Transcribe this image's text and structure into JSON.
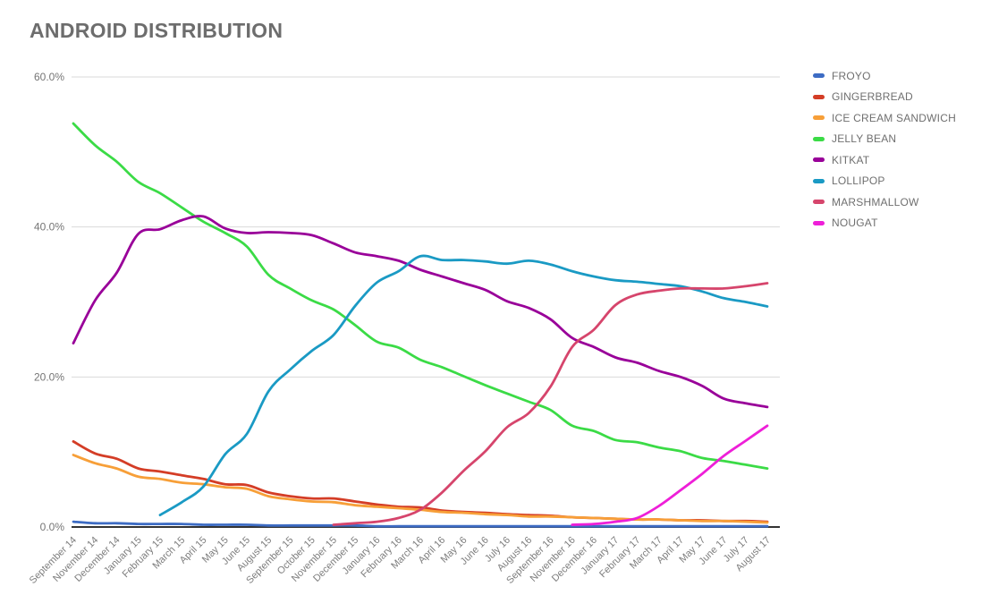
{
  "title": "ANDROID DISTRIBUTION",
  "chart_data": {
    "type": "line",
    "title": "ANDROID DISTRIBUTION",
    "grid": true,
    "legend_position": "right",
    "y_axis": {
      "min": 0,
      "max": 60,
      "ticks": [
        {
          "value": 0,
          "label": "0.0%"
        },
        {
          "value": 20,
          "label": "20.0%"
        },
        {
          "value": 40,
          "label": "40.0%"
        },
        {
          "value": 60,
          "label": "60.0%"
        }
      ]
    },
    "x_labels": [
      "September 14",
      "November 14",
      "December 14",
      "January 15",
      "February 15",
      "March 15",
      "April 15",
      "May 15",
      "June 15",
      "August 15",
      "September 15",
      "October 15",
      "November 15",
      "December 15",
      "January 16",
      "February 16",
      "March 16",
      "April 16",
      "May 16",
      "June 16",
      "July 16",
      "August 16",
      "September 16",
      "November 16",
      "December 16",
      "January 17",
      "February 17",
      "March 17",
      "April 17",
      "May 17",
      "June 17",
      "July 17",
      "August 17"
    ],
    "series": [
      {
        "name": "FROYO",
        "color": "#3d6cc4",
        "values": [
          0.7,
          0.5,
          0.5,
          0.4,
          0.4,
          0.4,
          0.3,
          0.3,
          0.3,
          0.2,
          0.2,
          0.2,
          0.2,
          0.2,
          0.1,
          0.1,
          0.1,
          0.1,
          0.1,
          0.1,
          0.1,
          0.1,
          0.1,
          0.1,
          0.1,
          0.1,
          0.1,
          0.1,
          0.1,
          0.1,
          0.1,
          0.1,
          0.1
        ]
      },
      {
        "name": "GINGERBREAD",
        "color": "#d43d26",
        "values": [
          11.4,
          9.8,
          9.1,
          7.8,
          7.4,
          6.9,
          6.4,
          5.7,
          5.6,
          4.6,
          4.1,
          3.8,
          3.8,
          3.4,
          3.0,
          2.7,
          2.6,
          2.2,
          2.0,
          1.9,
          1.7,
          1.6,
          1.5,
          1.3,
          1.2,
          1.1,
          1.0,
          1.0,
          0.9,
          0.9,
          0.8,
          0.8,
          0.7
        ]
      },
      {
        "name": "ICE CREAM SANDWICH",
        "color": "#f79f38",
        "values": [
          9.6,
          8.5,
          7.8,
          6.7,
          6.4,
          5.9,
          5.7,
          5.3,
          5.1,
          4.1,
          3.7,
          3.4,
          3.3,
          2.9,
          2.7,
          2.5,
          2.3,
          2.0,
          1.9,
          1.7,
          1.6,
          1.4,
          1.4,
          1.3,
          1.2,
          1.1,
          1.0,
          1.0,
          0.9,
          0.8,
          0.8,
          0.7,
          0.6
        ]
      },
      {
        "name": "JELLY BEAN",
        "color": "#3bdb46",
        "values": [
          53.8,
          50.9,
          48.7,
          46.0,
          44.5,
          42.6,
          40.7,
          39.2,
          37.4,
          33.6,
          31.8,
          30.2,
          29.0,
          26.9,
          24.7,
          23.9,
          22.3,
          21.3,
          20.1,
          18.9,
          17.8,
          16.7,
          15.6,
          13.5,
          12.8,
          11.6,
          11.3,
          10.6,
          10.1,
          9.2,
          8.8,
          8.3,
          7.8
        ]
      },
      {
        "name": "KITKAT",
        "color": "#990099",
        "values": [
          24.5,
          30.2,
          33.9,
          39.1,
          39.7,
          40.9,
          41.4,
          39.8,
          39.2,
          39.3,
          39.2,
          38.9,
          37.8,
          36.6,
          36.1,
          35.5,
          34.3,
          33.4,
          32.5,
          31.6,
          30.1,
          29.2,
          27.7,
          25.2,
          24.0,
          22.6,
          21.9,
          20.8,
          20.0,
          18.8,
          17.1,
          16.5,
          16.0
        ]
      },
      {
        "name": "LOLLIPOP",
        "color": "#1a9ac4",
        "values": [
          null,
          null,
          null,
          null,
          1.6,
          3.3,
          5.4,
          9.7,
          12.4,
          18.1,
          21.0,
          23.5,
          25.6,
          29.5,
          32.6,
          34.1,
          36.1,
          35.6,
          35.6,
          35.4,
          35.1,
          35.5,
          35.0,
          34.1,
          33.4,
          32.9,
          32.7,
          32.4,
          32.1,
          31.4,
          30.5,
          30.0,
          29.4
        ]
      },
      {
        "name": "MARSHMALLOW",
        "color": "#d6456c",
        "values": [
          null,
          null,
          null,
          null,
          null,
          null,
          null,
          null,
          null,
          null,
          null,
          null,
          0.3,
          0.5,
          0.7,
          1.2,
          2.3,
          4.6,
          7.5,
          10.1,
          13.3,
          15.2,
          18.7,
          24.0,
          26.3,
          29.6,
          31.0,
          31.5,
          31.8,
          31.8,
          31.8,
          32.1,
          32.5
        ]
      },
      {
        "name": "NOUGAT",
        "color": "#ee1fd8",
        "values": [
          null,
          null,
          null,
          null,
          null,
          null,
          null,
          null,
          null,
          null,
          null,
          null,
          null,
          null,
          null,
          null,
          null,
          null,
          null,
          null,
          null,
          null,
          null,
          0.3,
          0.4,
          0.7,
          1.2,
          2.8,
          4.9,
          7.1,
          9.5,
          11.5,
          13.5
        ]
      }
    ]
  }
}
